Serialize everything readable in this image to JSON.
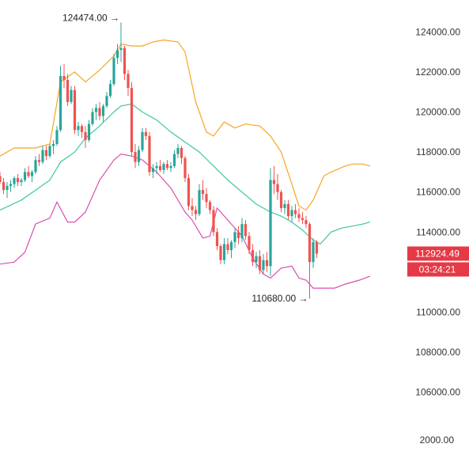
{
  "colors": {
    "up": "#26a69a",
    "down": "#ef5350",
    "bb_upper": "#f5a623",
    "bb_middle": "#3ec7a0",
    "bb_lower": "#d94fb0",
    "axis_text": "#333333",
    "price_label_bg": "#e53946",
    "price_label_text": "#ffffff"
  },
  "chart_data": {
    "type": "candlestick",
    "indicator": "bollinger-bands",
    "title": "",
    "ylim": [
      104600,
      125200
    ],
    "y_ticks": [
      {
        "value": 124000,
        "label": "124000.00"
      },
      {
        "value": 122000,
        "label": "122000.00"
      },
      {
        "value": 120000,
        "label": "120000.00"
      },
      {
        "value": 118000,
        "label": "118000.00"
      },
      {
        "value": 116000,
        "label": "116000.00"
      },
      {
        "value": 114000,
        "label": "114000.00"
      },
      {
        "value": 110000,
        "label": "110000.00"
      },
      {
        "value": 108000,
        "label": "108000.00"
      },
      {
        "value": 106000,
        "label": "106000.00"
      }
    ],
    "bottom_axis_label": "2000.00",
    "last_price": {
      "value": 112924.49,
      "label": "112924.49",
      "countdown": "03:24:21"
    },
    "annotations": {
      "high": {
        "value": 124474,
        "label": "124474.00 →"
      },
      "low": {
        "value": 110680,
        "label": "110680.00 →"
      }
    },
    "candles": [
      [
        116800,
        117000,
        116400,
        116500
      ],
      [
        116500,
        116700,
        115900,
        116100
      ],
      [
        116100,
        116500,
        115700,
        116300
      ],
      [
        116300,
        116600,
        116000,
        116400
      ],
      [
        116400,
        116800,
        116200,
        116700
      ],
      [
        116700,
        116900,
        116300,
        116500
      ],
      [
        116500,
        116700,
        116300,
        116600
      ],
      [
        116600,
        117200,
        116500,
        117000
      ],
      [
        117000,
        117300,
        116700,
        116800
      ],
      [
        116800,
        117100,
        116500,
        117000
      ],
      [
        117000,
        117800,
        116900,
        117600
      ],
      [
        117600,
        117900,
        117300,
        117500
      ],
      [
        117500,
        118300,
        117400,
        118100
      ],
      [
        118100,
        118300,
        117600,
        117800
      ],
      [
        117800,
        118400,
        117700,
        118300
      ],
      [
        118300,
        118600,
        117900,
        118400
      ],
      [
        118400,
        119300,
        118300,
        119100
      ],
      [
        119100,
        122300,
        119000,
        121800
      ],
      [
        121800,
        122400,
        121200,
        121600
      ],
      [
        121600,
        121900,
        120300,
        120500
      ],
      [
        120500,
        121300,
        120400,
        121100
      ],
      [
        121100,
        121300,
        118900,
        119100
      ],
      [
        119100,
        119500,
        118800,
        119300
      ],
      [
        119300,
        119400,
        118700,
        119000
      ],
      [
        119000,
        119300,
        118200,
        118600
      ],
      [
        118600,
        119600,
        118500,
        119400
      ],
      [
        119400,
        120200,
        119300,
        120000
      ],
      [
        120000,
        120400,
        119600,
        120200
      ],
      [
        120200,
        120500,
        119600,
        119800
      ],
      [
        119800,
        120400,
        119500,
        120300
      ],
      [
        120300,
        121000,
        120200,
        120800
      ],
      [
        120800,
        121600,
        120700,
        121400
      ],
      [
        121400,
        122900,
        121300,
        122700
      ],
      [
        122700,
        123400,
        122400,
        123100
      ],
      [
        123100,
        124474,
        122500,
        123200
      ],
      [
        123200,
        123300,
        121600,
        121900
      ],
      [
        121900,
        122100,
        120800,
        121200
      ],
      [
        121200,
        121500,
        117800,
        118000
      ],
      [
        118000,
        118400,
        117200,
        117500
      ],
      [
        117500,
        118300,
        117300,
        118100
      ],
      [
        118100,
        119200,
        118000,
        119000
      ],
      [
        119000,
        119200,
        118600,
        118800
      ],
      [
        118800,
        119000,
        116800,
        117000
      ],
      [
        117000,
        117400,
        116700,
        117200
      ],
      [
        117200,
        117500,
        116900,
        117300
      ],
      [
        117300,
        117600,
        117000,
        117100
      ],
      [
        117100,
        117500,
        116900,
        117400
      ],
      [
        117400,
        117600,
        117100,
        117200
      ],
      [
        117200,
        117500,
        117000,
        117300
      ],
      [
        117300,
        118100,
        117200,
        117900
      ],
      [
        117900,
        118400,
        117700,
        118200
      ],
      [
        118200,
        118300,
        117400,
        117700
      ],
      [
        117700,
        117800,
        116500,
        116700
      ],
      [
        116700,
        116900,
        115100,
        115300
      ],
      [
        115300,
        115700,
        114800,
        115100
      ],
      [
        115100,
        115300,
        114600,
        114900
      ],
      [
        114900,
        116400,
        114800,
        116100
      ],
      [
        116100,
        116600,
        115600,
        115900
      ],
      [
        115900,
        116200,
        115200,
        115500
      ],
      [
        115500,
        115600,
        114900,
        115100
      ],
      [
        115100,
        115300,
        113800,
        114000
      ],
      [
        114000,
        114200,
        113100,
        113300
      ],
      [
        113300,
        113400,
        112400,
        112600
      ],
      [
        112600,
        113700,
        112400,
        113400
      ],
      [
        113400,
        113700,
        112900,
        113100
      ],
      [
        113100,
        113600,
        112700,
        113500
      ],
      [
        113500,
        114200,
        113200,
        114000
      ],
      [
        114000,
        114300,
        113400,
        113700
      ],
      [
        113700,
        114700,
        113500,
        114400
      ],
      [
        114400,
        114600,
        113600,
        113800
      ],
      [
        113800,
        114000,
        112900,
        113100
      ],
      [
        113100,
        113400,
        112300,
        112500
      ],
      [
        112500,
        113000,
        112200,
        112800
      ],
      [
        112800,
        113100,
        111900,
        112100
      ],
      [
        112100,
        112900,
        111900,
        112600
      ],
      [
        112600,
        113000,
        112000,
        112300
      ],
      [
        112300,
        117200,
        111800,
        116600
      ],
      [
        116600,
        117300,
        115900,
        116400
      ],
      [
        116400,
        116900,
        115600,
        116000
      ],
      [
        116000,
        116100,
        115000,
        115200
      ],
      [
        115200,
        115600,
        114900,
        115400
      ],
      [
        115400,
        115600,
        114600,
        114800
      ],
      [
        114800,
        115300,
        114500,
        115100
      ],
      [
        115100,
        115400,
        114700,
        114900
      ],
      [
        114900,
        115200,
        114500,
        114700
      ],
      [
        114700,
        115000,
        114400,
        114600
      ],
      [
        114600,
        114800,
        114200,
        114400
      ],
      [
        114400,
        114500,
        110680,
        112500
      ],
      [
        112500,
        113700,
        112200,
        113500
      ],
      [
        113500,
        113600,
        112700,
        112924
      ]
    ],
    "bollinger": {
      "upper": [
        [
          0,
          117800
        ],
        [
          4,
          118200
        ],
        [
          10,
          118200
        ],
        [
          14,
          118400
        ],
        [
          17,
          121500
        ],
        [
          21,
          122000
        ],
        [
          24,
          121500
        ],
        [
          28,
          122100
        ],
        [
          32,
          122800
        ],
        [
          34,
          123400
        ],
        [
          37,
          123300
        ],
        [
          40,
          123300
        ],
        [
          43,
          123500
        ],
        [
          46,
          123600
        ],
        [
          50,
          123500
        ],
        [
          52,
          123000
        ],
        [
          55,
          120500
        ],
        [
          58,
          119000
        ],
        [
          60,
          118800
        ],
        [
          63,
          119500
        ],
        [
          66,
          119200
        ],
        [
          69,
          119400
        ],
        [
          73,
          119300
        ],
        [
          76,
          118800
        ],
        [
          79,
          118000
        ],
        [
          82,
          116400
        ],
        [
          84,
          115300
        ],
        [
          86,
          115100
        ],
        [
          88,
          115600
        ],
        [
          91,
          116800
        ],
        [
          93,
          117000
        ],
        [
          97,
          117300
        ],
        [
          99,
          117400
        ],
        [
          102,
          117400
        ],
        [
          104,
          117300
        ]
      ],
      "middle": [
        [
          0,
          115100
        ],
        [
          6,
          115600
        ],
        [
          10,
          116100
        ],
        [
          14,
          116600
        ],
        [
          17,
          117500
        ],
        [
          21,
          118000
        ],
        [
          24,
          118700
        ],
        [
          28,
          119300
        ],
        [
          32,
          120000
        ],
        [
          34,
          120300
        ],
        [
          37,
          120400
        ],
        [
          40,
          120000
        ],
        [
          44,
          119600
        ],
        [
          48,
          119000
        ],
        [
          52,
          118500
        ],
        [
          56,
          118000
        ],
        [
          60,
          117300
        ],
        [
          64,
          116600
        ],
        [
          68,
          116000
        ],
        [
          72,
          115400
        ],
        [
          76,
          115000
        ],
        [
          79,
          114800
        ],
        [
          82,
          114500
        ],
        [
          85,
          114100
        ],
        [
          88,
          113600
        ],
        [
          90,
          113400
        ],
        [
          93,
          114000
        ],
        [
          96,
          114200
        ],
        [
          99,
          114300
        ],
        [
          102,
          114400
        ],
        [
          104,
          114500
        ]
      ],
      "lower": [
        [
          0,
          112400
        ],
        [
          4,
          112500
        ],
        [
          7,
          113000
        ],
        [
          10,
          114400
        ],
        [
          14,
          114700
        ],
        [
          16,
          115500
        ],
        [
          19,
          114500
        ],
        [
          21,
          114500
        ],
        [
          24,
          115000
        ],
        [
          28,
          116600
        ],
        [
          32,
          117600
        ],
        [
          34,
          117900
        ],
        [
          37,
          117800
        ],
        [
          40,
          117600
        ],
        [
          44,
          117000
        ],
        [
          48,
          116200
        ],
        [
          52,
          115000
        ],
        [
          54,
          114600
        ],
        [
          57,
          113700
        ],
        [
          59,
          113800
        ],
        [
          61,
          115200
        ],
        [
          64,
          114600
        ],
        [
          68,
          113800
        ],
        [
          71,
          112700
        ],
        [
          74,
          111900
        ],
        [
          76,
          111700
        ],
        [
          79,
          112200
        ],
        [
          82,
          112300
        ],
        [
          84,
          111700
        ],
        [
          86,
          111600
        ],
        [
          88,
          111200
        ],
        [
          91,
          111200
        ],
        [
          94,
          111200
        ],
        [
          97,
          111400
        ],
        [
          99,
          111500
        ],
        [
          101,
          111600
        ],
        [
          104,
          111800
        ]
      ]
    }
  }
}
